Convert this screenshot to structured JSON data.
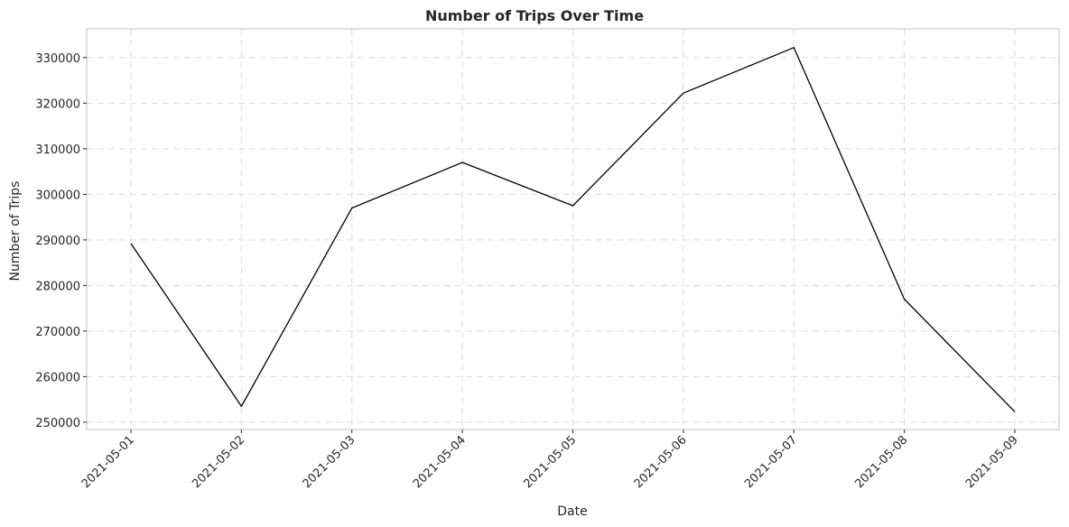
{
  "chart_data": {
    "type": "line",
    "title": "Number of Trips Over Time",
    "xlabel": "Date",
    "ylabel": "Number of Trips",
    "x": [
      "2021-05-01",
      "2021-05-02",
      "2021-05-03",
      "2021-05-04",
      "2021-05-05",
      "2021-05-06",
      "2021-05-07",
      "2021-05-08",
      "2021-05-09"
    ],
    "series": [
      {
        "values": [
          289200,
          253500,
          297000,
          307000,
          297500,
          322200,
          332200,
          277000,
          252300
        ],
        "color": "#000000"
      }
    ],
    "yticks": [
      250000,
      260000,
      270000,
      280000,
      290000,
      300000,
      310000,
      320000,
      330000
    ],
    "ytick_labels": [
      "250000",
      "260000",
      "270000",
      "280000",
      "290000",
      "300000",
      "310000",
      "320000",
      "330000"
    ],
    "ylim": [
      248400,
      336300
    ],
    "grid": true,
    "grid_style": "dashed",
    "legend": "none"
  }
}
